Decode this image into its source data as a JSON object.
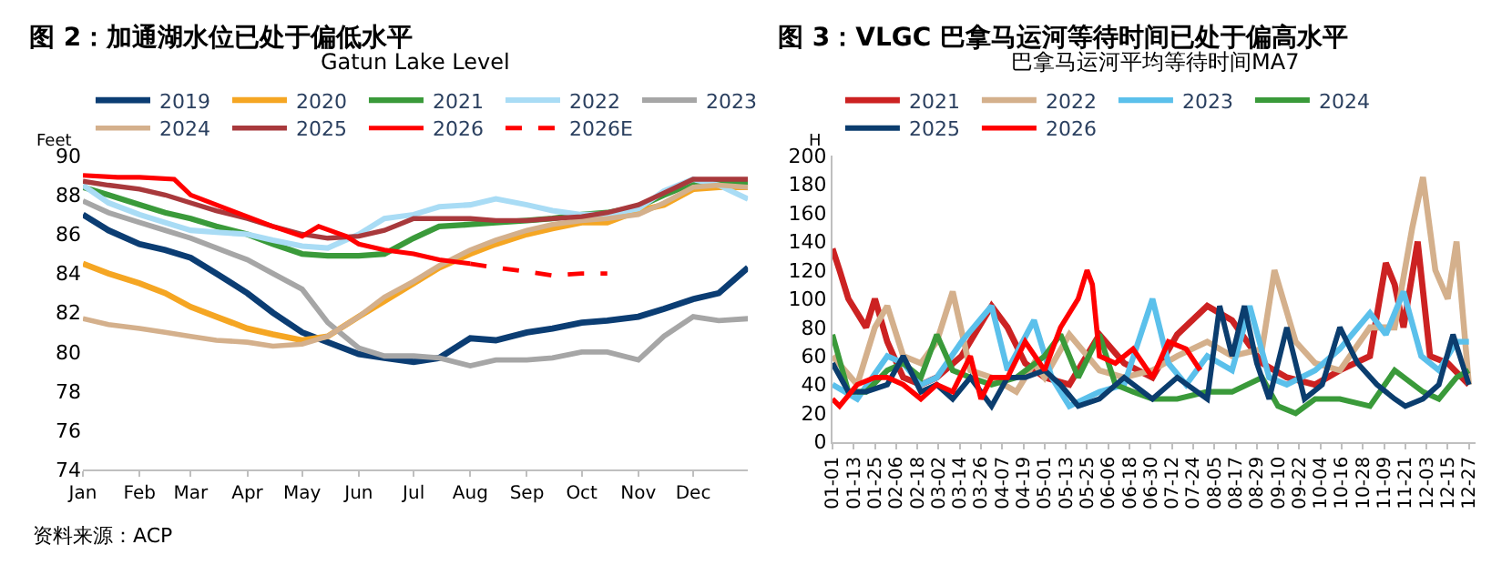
{
  "chart_data": [
    {
      "type": "line",
      "title": "图 2：加通湖水位已处于偏低水平",
      "subtitle": "Gatun Lake Level",
      "ylabel": "Feet",
      "x": [
        "--01-01",
        "--01-15",
        "--02-01",
        "--02-15",
        "--03-01",
        "--03-15",
        "--04-01",
        "--04-15",
        "--05-01",
        "--05-15",
        "--06-01",
        "--06-15",
        "--07-01",
        "--07-15",
        "--08-01",
        "--08-15",
        "--09-01",
        "--09-15",
        "--10-01",
        "--10-15",
        "--11-01",
        "--11-15",
        "--12-01",
        "--12-15",
        "--12-31"
      ],
      "series": [
        {
          "name": "2019",
          "color": "#0b3d73",
          "values": [
            87,
            86.2,
            85.5,
            85.2,
            84.8,
            84.0,
            83,
            82,
            81,
            80.5,
            79.9,
            79.7,
            79.5,
            79.7,
            80.7,
            80.6,
            81,
            81.2,
            81.5,
            81.6,
            81.8,
            82.2,
            82.7,
            83,
            84.3
          ]
        },
        {
          "name": "2020",
          "color": "#f5a623",
          "values": [
            84.5,
            84.0,
            83.5,
            83.0,
            82.3,
            81.8,
            81.2,
            80.9,
            80.6,
            80.8,
            81.8,
            82.6,
            83.5,
            84.3,
            85,
            85.5,
            86,
            86.3,
            86.6,
            86.6,
            87.2,
            87.5,
            88.3,
            88.4,
            88.4
          ]
        },
        {
          "name": "2021",
          "color": "#3a9a3a",
          "values": [
            88.4,
            88.0,
            87.5,
            87.1,
            86.8,
            86.4,
            86.0,
            85.5,
            85.0,
            84.9,
            84.9,
            85.0,
            85.8,
            86.4,
            86.5,
            86.6,
            86.7,
            86.8,
            87.0,
            87.1,
            87.4,
            88.0,
            88.6,
            88.6,
            88.6
          ]
        },
        {
          "name": "2022",
          "color": "#a9dcf5",
          "values": [
            88.5,
            87.6,
            87.0,
            86.6,
            86.2,
            86.1,
            86.0,
            85.7,
            85.4,
            85.3,
            86.0,
            86.8,
            87.0,
            87.4,
            87.5,
            87.8,
            87.5,
            87.2,
            87.0,
            87.0,
            87.3,
            88.2,
            88.8,
            88.5,
            87.8
          ]
        },
        {
          "name": "2023",
          "color": "#a6a6a6",
          "values": [
            87.7,
            87.1,
            86.6,
            86.2,
            85.8,
            85.3,
            84.7,
            84.0,
            83.2,
            81.5,
            80.2,
            79.8,
            79.8,
            79.7,
            79.3,
            79.6,
            79.6,
            79.7,
            80.0,
            80.0,
            79.6,
            80.8,
            81.8,
            81.6,
            81.7
          ]
        },
        {
          "name": "2024",
          "color": "#d4b08c",
          "values": [
            81.7,
            81.4,
            81.2,
            81.0,
            80.8,
            80.6,
            80.5,
            80.3,
            80.4,
            80.8,
            81.8,
            82.8,
            83.6,
            84.4,
            85.2,
            85.7,
            86.2,
            86.5,
            86.7,
            86.8,
            87.0,
            87.6,
            88.4,
            88.5,
            88.4
          ]
        },
        {
          "name": "2025",
          "color": "#a8393c",
          "values": [
            88.7,
            88.5,
            88.3,
            88.0,
            87.6,
            87.2,
            86.8,
            86.4,
            86.0,
            85.8,
            85.9,
            86.2,
            86.8,
            86.8,
            86.8,
            86.7,
            86.7,
            86.8,
            86.9,
            87.1,
            87.5,
            88.1,
            88.8,
            88.8,
            88.8
          ]
        },
        {
          "name": "2026",
          "color": "#ff0000",
          "x": [
            "--01-01",
            "--01-20",
            "--02-01",
            "--02-20",
            "--03-01",
            "--03-15",
            "--04-01",
            "--04-15",
            "--05-01",
            "--05-10",
            "--05-25",
            "--06-01",
            "--06-15",
            "--07-01",
            "--07-15",
            "--08-01"
          ],
          "values": [
            89.0,
            88.9,
            88.9,
            88.8,
            88.0,
            87.5,
            86.9,
            86.4,
            85.9,
            86.4,
            85.9,
            85.5,
            85.2,
            85.0,
            84.7,
            84.5
          ]
        },
        {
          "name": "2026E",
          "color": "#ff0000",
          "line_style": "dashed",
          "x": [
            "--08-01",
            "--08-15",
            "--09-01",
            "--09-15",
            "--10-01",
            "--10-15"
          ],
          "values": [
            84.5,
            84.3,
            84.1,
            83.9,
            84.0,
            84.0
          ]
        }
      ],
      "xlim": [
        "--01-01",
        "--12-31"
      ],
      "xticks": [
        {
          "value": "--01-01",
          "label": "Jan"
        },
        {
          "value": "--02-01",
          "label": "Feb"
        },
        {
          "value": "--03-01",
          "label": "Mar"
        },
        {
          "value": "--04-01",
          "label": "Apr"
        },
        {
          "value": "--05-01",
          "label": "May"
        },
        {
          "value": "--06-01",
          "label": "Jun"
        },
        {
          "value": "--07-01",
          "label": "Jul"
        },
        {
          "value": "--08-01",
          "label": "Aug"
        },
        {
          "value": "--09-01",
          "label": "Sep"
        },
        {
          "value": "--10-01",
          "label": "Oct"
        },
        {
          "value": "--11-01",
          "label": "Nov"
        },
        {
          "value": "--12-01",
          "label": "Dec"
        }
      ],
      "ylim": [
        74,
        90
      ],
      "yticks": [
        74,
        76,
        78,
        80,
        82,
        84,
        86,
        88,
        90
      ],
      "legend": "top",
      "line_style": "solid",
      "marker": "none",
      "annotations": [
        "资料来源：ACP"
      ]
    },
    {
      "type": "line",
      "title": "图 3：VLGC 巴拿马运河等待时间已处于偏高水平",
      "subtitle": "巴拿马运河平均等待时间MA7",
      "ylabel": "H",
      "series": [
        {
          "name": "2021",
          "color": "#cc2222",
          "x": [
            "--01-01",
            "--01-05",
            "--01-10",
            "--01-20",
            "--01-25",
            "--02-01",
            "--02-10",
            "--02-20",
            "--03-01",
            "--03-15",
            "--04-01",
            "--04-10",
            "--04-20",
            "--05-01",
            "--05-15",
            "--06-01",
            "--06-15",
            "--07-01",
            "--07-15",
            "--08-01",
            "--08-15",
            "--09-01",
            "--09-15",
            "--10-01",
            "--10-15",
            "--11-01",
            "--11-10",
            "--11-15",
            "--11-20",
            "--11-28",
            "--12-05",
            "--12-15",
            "--12-27"
          ],
          "values": [
            135,
            120,
            100,
            80,
            100,
            70,
            45,
            40,
            45,
            60,
            95,
            80,
            55,
            45,
            40,
            75,
            55,
            45,
            75,
            95,
            85,
            55,
            45,
            40,
            50,
            60,
            125,
            110,
            80,
            140,
            60,
            55,
            40
          ]
        },
        {
          "name": "2022",
          "color": "#d4b08c",
          "x": [
            "--01-01",
            "--01-15",
            "--01-25",
            "--02-01",
            "--02-10",
            "--02-20",
            "--03-01",
            "--03-10",
            "--03-20",
            "--04-01",
            "--04-15",
            "--04-25",
            "--05-01",
            "--05-15",
            "--06-01",
            "--06-15",
            "--07-01",
            "--07-15",
            "--08-01",
            "--08-15",
            "--09-01",
            "--09-08",
            "--09-20",
            "--10-01",
            "--10-15",
            "--11-01",
            "--11-15",
            "--11-25",
            "--12-01",
            "--12-08",
            "--12-15",
            "--12-20",
            "--12-27"
          ],
          "values": [
            60,
            40,
            80,
            95,
            60,
            55,
            70,
            105,
            50,
            45,
            35,
            55,
            45,
            75,
            50,
            45,
            50,
            60,
            70,
            60,
            65,
            120,
            70,
            55,
            50,
            80,
            80,
            150,
            185,
            120,
            100,
            140,
            40
          ]
        },
        {
          "name": "2023",
          "color": "#5bc0eb",
          "x": [
            "--01-01",
            "--01-15",
            "--02-01",
            "--02-10",
            "--02-20",
            "--03-01",
            "--03-15",
            "--04-01",
            "--04-10",
            "--04-25",
            "--05-05",
            "--05-15",
            "--06-01",
            "--06-15",
            "--07-01",
            "--07-10",
            "--07-20",
            "--08-01",
            "--08-15",
            "--08-25",
            "--09-05",
            "--09-15",
            "--10-01",
            "--10-15",
            "--11-01",
            "--11-10",
            "--11-20",
            "--11-30",
            "--12-10",
            "--12-20",
            "--12-27"
          ],
          "values": [
            40,
            30,
            60,
            55,
            40,
            45,
            70,
            95,
            50,
            85,
            45,
            25,
            35,
            40,
            100,
            55,
            40,
            60,
            50,
            95,
            45,
            40,
            50,
            65,
            90,
            75,
            105,
            60,
            50,
            70,
            70
          ]
        },
        {
          "name": "2024",
          "color": "#3a9a3a",
          "x": [
            "--01-01",
            "--01-10",
            "--01-20",
            "--02-01",
            "--02-10",
            "--02-20",
            "--03-01",
            "--03-10",
            "--03-20",
            "--04-01",
            "--04-15",
            "--05-01",
            "--05-10",
            "--05-20",
            "--06-01",
            "--06-10",
            "--06-20",
            "--07-01",
            "--07-15",
            "--08-01",
            "--08-15",
            "--09-01",
            "--09-10",
            "--09-20",
            "--10-01",
            "--10-15",
            "--11-01",
            "--11-15",
            "--12-01",
            "--12-10",
            "--12-20",
            "--12-27"
          ],
          "values": [
            75,
            35,
            35,
            50,
            55,
            45,
            75,
            50,
            45,
            40,
            45,
            60,
            75,
            45,
            75,
            40,
            35,
            30,
            30,
            35,
            35,
            45,
            25,
            20,
            30,
            30,
            25,
            50,
            35,
            30,
            45,
            50
          ]
        },
        {
          "name": "2025",
          "color": "#0b3d6e",
          "x": [
            "--01-01",
            "--01-10",
            "--01-20",
            "--02-01",
            "--02-10",
            "--02-20",
            "--03-01",
            "--03-10",
            "--03-20",
            "--04-01",
            "--04-10",
            "--04-20",
            "--05-01",
            "--05-10",
            "--05-20",
            "--06-01",
            "--06-15",
            "--07-01",
            "--07-15",
            "--08-01",
            "--08-08",
            "--08-15",
            "--08-22",
            "--08-29",
            "--09-05",
            "--09-15",
            "--09-25",
            "--10-05",
            "--10-15",
            "--10-25",
            "--11-05",
            "--11-15",
            "--11-21",
            "--12-01",
            "--12-10",
            "--12-18",
            "--12-27"
          ],
          "values": [
            55,
            35,
            35,
            40,
            60,
            35,
            40,
            30,
            45,
            25,
            45,
            45,
            50,
            40,
            25,
            30,
            45,
            30,
            45,
            30,
            95,
            60,
            95,
            55,
            30,
            80,
            30,
            40,
            80,
            55,
            40,
            30,
            25,
            30,
            40,
            75,
            40
          ]
        },
        {
          "name": "2026",
          "color": "#ff0000",
          "x": [
            "--01-01",
            "--01-05",
            "--01-15",
            "--01-25",
            "--02-01",
            "--02-10",
            "--02-20",
            "--03-01",
            "--03-10",
            "--03-20",
            "--03-26",
            "--04-01",
            "--04-10",
            "--04-20",
            "--05-01",
            "--05-10",
            "--05-20",
            "--05-25",
            "--05-28",
            "--06-01",
            "--06-10",
            "--06-20",
            "--07-01",
            "--07-10",
            "--07-20",
            "--07-28"
          ],
          "values": [
            30,
            25,
            40,
            45,
            45,
            40,
            30,
            40,
            35,
            60,
            30,
            45,
            45,
            70,
            50,
            80,
            100,
            120,
            110,
            60,
            55,
            65,
            45,
            70,
            65,
            50
          ]
        }
      ],
      "xlim": [
        "--01-01",
        "--12-31"
      ],
      "xticks": [
        {
          "value": "--01-01",
          "label": "01-01"
        },
        {
          "value": "--01-13",
          "label": "01-13"
        },
        {
          "value": "--01-25",
          "label": "01-25"
        },
        {
          "value": "--02-06",
          "label": "02-06"
        },
        {
          "value": "--02-18",
          "label": "02-18"
        },
        {
          "value": "--03-02",
          "label": "03-02"
        },
        {
          "value": "--03-14",
          "label": "03-14"
        },
        {
          "value": "--03-26",
          "label": "03-26"
        },
        {
          "value": "--04-07",
          "label": "04-07"
        },
        {
          "value": "--04-19",
          "label": "04-19"
        },
        {
          "value": "--05-01",
          "label": "05-01"
        },
        {
          "value": "--05-13",
          "label": "05-13"
        },
        {
          "value": "--05-25",
          "label": "05-25"
        },
        {
          "value": "--06-06",
          "label": "06-06"
        },
        {
          "value": "--06-18",
          "label": "06-18"
        },
        {
          "value": "--06-30",
          "label": "06-30"
        },
        {
          "value": "--07-12",
          "label": "07-12"
        },
        {
          "value": "--07-24",
          "label": "07-24"
        },
        {
          "value": "--08-05",
          "label": "08-05"
        },
        {
          "value": "--08-17",
          "label": "08-17"
        },
        {
          "value": "--08-29",
          "label": "08-29"
        },
        {
          "value": "--09-10",
          "label": "09-10"
        },
        {
          "value": "--09-22",
          "label": "09-22"
        },
        {
          "value": "--10-04",
          "label": "10-04"
        },
        {
          "value": "--10-16",
          "label": "10-16"
        },
        {
          "value": "--10-28",
          "label": "10-28"
        },
        {
          "value": "--11-09",
          "label": "11-09"
        },
        {
          "value": "--11-21",
          "label": "11-21"
        },
        {
          "value": "--12-03",
          "label": "12-03"
        },
        {
          "value": "--12-15",
          "label": "12-15"
        },
        {
          "value": "--12-27",
          "label": "12-27"
        }
      ],
      "ylim": [
        0,
        200
      ],
      "yticks": [
        0,
        20,
        40,
        60,
        80,
        100,
        120,
        140,
        160,
        180,
        200
      ],
      "legend": "top",
      "line_style": "solid",
      "marker": "none"
    }
  ]
}
